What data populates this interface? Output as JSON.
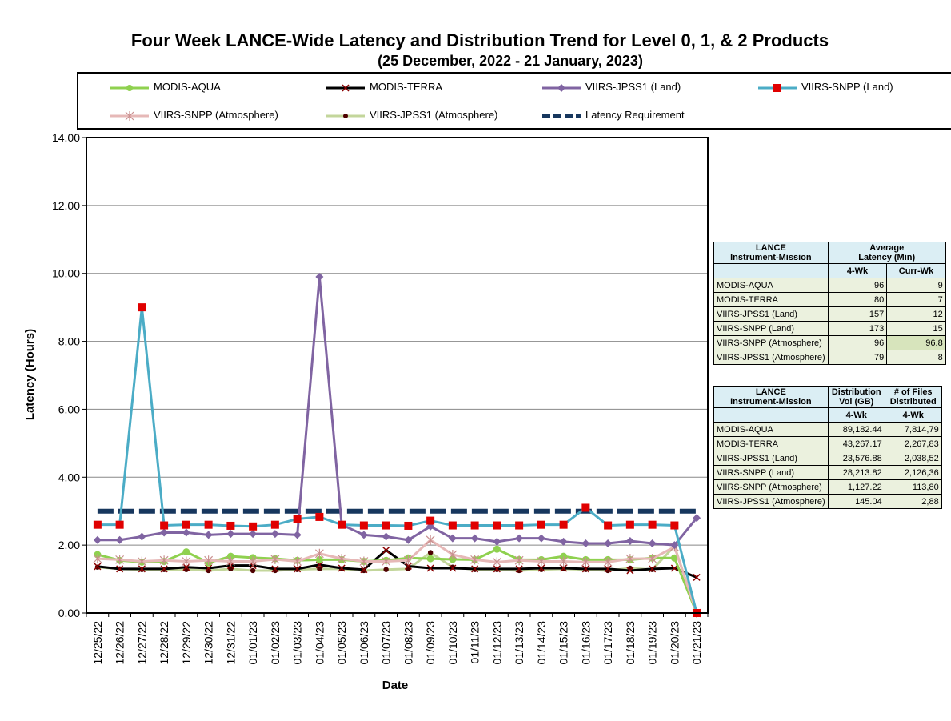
{
  "chart_data": {
    "type": "line",
    "title": "Four Week LANCE-Wide Latency and Distribution Trend for Level 0, 1, & 2 Products",
    "subtitle": "(25  December,  2022  -  21  January, 2023)",
    "xlabel": "Date",
    "ylabel": "Latency (Hours)",
    "ylim": [
      0,
      14
    ],
    "yticks": [
      "0.00",
      "2.00",
      "4.00",
      "6.00",
      "8.00",
      "10.00",
      "12.00",
      "14.00"
    ],
    "grid": true,
    "legend_position": "top",
    "categories": [
      "12/25/22",
      "12/26/22",
      "12/27/22",
      "12/28/22",
      "12/29/22",
      "12/30/22",
      "12/31/22",
      "01/01/23",
      "01/02/23",
      "01/03/23",
      "01/04/23",
      "01/05/23",
      "01/06/23",
      "01/07/23",
      "01/08/23",
      "01/09/23",
      "01/10/23",
      "01/11/23",
      "01/12/23",
      "01/13/23",
      "01/14/23",
      "01/15/23",
      "01/16/23",
      "01/17/23",
      "01/18/23",
      "01/19/23",
      "01/20/23",
      "01/21/23"
    ],
    "series": [
      {
        "name": "MODIS-AQUA",
        "color": "#8fd14f",
        "marker": "circle",
        "values": [
          1.72,
          1.55,
          1.5,
          1.52,
          1.8,
          1.48,
          1.67,
          1.63,
          1.6,
          1.55,
          1.57,
          1.57,
          1.52,
          1.55,
          1.62,
          1.6,
          1.58,
          1.57,
          1.88,
          1.57,
          1.57,
          1.67,
          1.57,
          1.57,
          1.57,
          1.62,
          1.62,
          0.0
        ]
      },
      {
        "name": "MODIS-TERRA",
        "color": "#000000",
        "marker": "x",
        "values": [
          1.37,
          1.3,
          1.3,
          1.3,
          1.35,
          1.32,
          1.4,
          1.4,
          1.3,
          1.3,
          1.42,
          1.32,
          1.28,
          1.85,
          1.38,
          1.32,
          1.32,
          1.3,
          1.3,
          1.3,
          1.32,
          1.32,
          1.3,
          1.3,
          1.25,
          1.3,
          1.32,
          1.05
        ]
      },
      {
        "name": "VIIRS-JPSS1 (Land)",
        "color": "#8064a2",
        "marker": "diamond",
        "values": [
          2.15,
          2.15,
          2.25,
          2.37,
          2.37,
          2.3,
          2.33,
          2.33,
          2.33,
          2.3,
          9.9,
          2.6,
          2.3,
          2.25,
          2.15,
          2.55,
          2.2,
          2.2,
          2.1,
          2.2,
          2.2,
          2.1,
          2.05,
          2.05,
          2.12,
          2.05,
          2.0,
          2.8
        ]
      },
      {
        "name": "VIIRS-SNPP (Land)",
        "color": "#4bacc6",
        "marker": "square",
        "values": [
          2.6,
          2.6,
          9.0,
          2.58,
          2.6,
          2.6,
          2.57,
          2.55,
          2.6,
          2.77,
          2.83,
          2.6,
          2.58,
          2.58,
          2.57,
          2.72,
          2.58,
          2.58,
          2.58,
          2.58,
          2.6,
          2.6,
          3.1,
          2.58,
          2.6,
          2.6,
          2.58,
          0.0
        ]
      },
      {
        "name": "VIIRS-SNPP (Atmosphere)",
        "color": "#e6b8b7",
        "marker": "star",
        "values": [
          1.6,
          1.57,
          1.52,
          1.55,
          1.52,
          1.55,
          1.52,
          1.52,
          1.58,
          1.52,
          1.75,
          1.6,
          1.52,
          1.52,
          1.55,
          2.15,
          1.72,
          1.57,
          1.5,
          1.55,
          1.52,
          1.52,
          1.5,
          1.5,
          1.6,
          1.6,
          1.95,
          0.0
        ]
      },
      {
        "name": "VIIRS-JPSS1 (Atmosphere)",
        "color": "#c3d69b",
        "dotcolor": "#4d0000",
        "marker": "dot",
        "values": [
          1.35,
          1.3,
          1.28,
          1.28,
          1.28,
          1.25,
          1.3,
          1.25,
          1.25,
          1.28,
          1.3,
          1.3,
          1.25,
          1.28,
          1.3,
          1.78,
          1.35,
          1.28,
          1.28,
          1.25,
          1.28,
          1.3,
          1.28,
          1.25,
          1.32,
          1.28,
          1.97,
          0.0
        ]
      },
      {
        "name": "Latency Requirement",
        "color": "#17375e",
        "marker": "none",
        "dashed": true,
        "values": [
          3,
          3,
          3,
          3,
          3,
          3,
          3,
          3,
          3,
          3,
          3,
          3,
          3,
          3,
          3,
          3,
          3,
          3,
          3,
          3,
          3,
          3,
          3,
          3,
          3,
          3,
          3,
          3
        ]
      }
    ]
  },
  "latency_table": {
    "header1": "LANCE",
    "header2": "Instrument-Mission",
    "avg1": "Average",
    "avg2": "Latency (Min)",
    "col_a": "4-Wk",
    "col_b": "Curr-Wk",
    "rows": [
      {
        "name": "MODIS-AQUA",
        "a": "96",
        "b": "9"
      },
      {
        "name": "MODIS-TERRA",
        "a": "80",
        "b": "7"
      },
      {
        "name": "VIIRS-JPSS1 (Land)",
        "a": "157",
        "b": "12"
      },
      {
        "name": "VIIRS-SNPP (Land)",
        "a": "173",
        "b": "15"
      },
      {
        "name": "VIIRS-SNPP (Atmosphere)",
        "a": "96",
        "b": "96.8"
      },
      {
        "name": "VIIRS-JPSS1 (Atmosphere)",
        "a": "79",
        "b": "8"
      }
    ]
  },
  "distribution_table": {
    "header1": "LANCE",
    "header2": "Instrument-Mission",
    "vol1": "Distribution",
    "vol2": "Vol (GB)",
    "files1": "# of Files",
    "files2": "Distributed",
    "col_a": "4-Wk",
    "col_b": "4-Wk",
    "rows": [
      {
        "name": "MODIS-AQUA",
        "a": "89,182.44",
        "b": "7,814,79"
      },
      {
        "name": "MODIS-TERRA",
        "a": "43,267.17",
        "b": "2,267,83"
      },
      {
        "name": "VIIRS-JPSS1 (Land)",
        "a": "23,576.88",
        "b": "2,038,52"
      },
      {
        "name": "VIIRS-SNPP (Land)",
        "a": "28,213.82",
        "b": "2,126,36"
      },
      {
        "name": "VIIRS-SNPP (Atmosphere)",
        "a": "1,127.22",
        "b": "113,80"
      },
      {
        "name": "VIIRS-JPSS1 (Atmosphere)",
        "a": "145.04",
        "b": "2,88"
      }
    ]
  }
}
